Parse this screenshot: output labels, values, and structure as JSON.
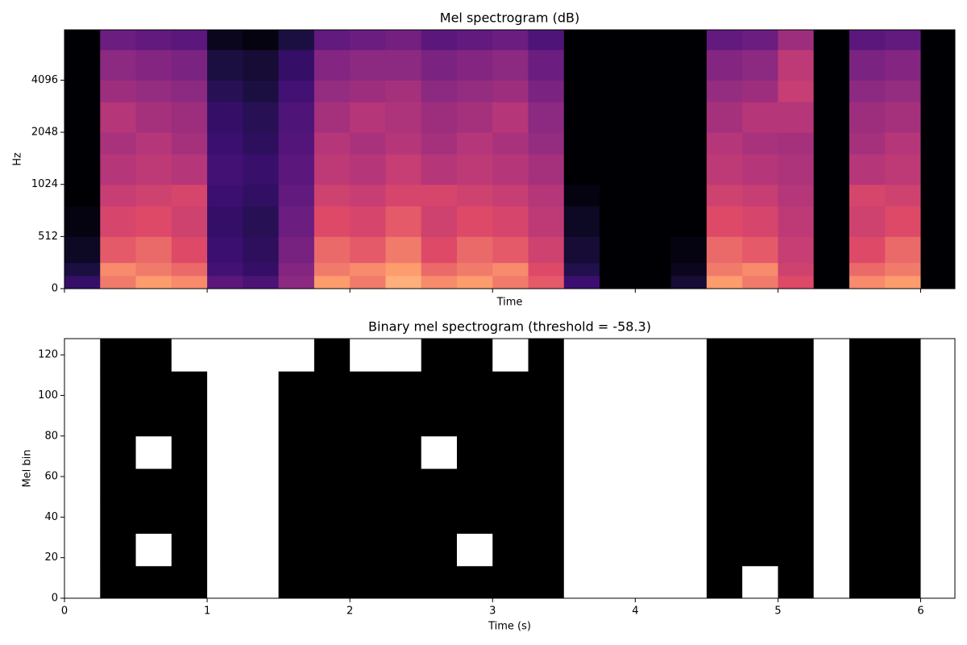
{
  "chart_data": [
    {
      "type": "heatmap",
      "title": "Mel spectrogram (dB)",
      "x_label": "Time",
      "y_label": "Hz",
      "xlim": [
        0,
        6.24
      ],
      "ylim": [
        0,
        8000
      ],
      "yscale": "symlog",
      "linthresh": 512,
      "xticks": [
        0,
        1,
        2,
        3,
        4,
        5,
        6
      ],
      "xticklabels": false,
      "yticks": [
        0,
        512,
        1024,
        2048,
        4096
      ],
      "cmap": "magma",
      "zlim": [
        -80,
        0
      ],
      "x_edges": [
        0,
        0.25,
        0.5,
        0.75,
        1,
        1.25,
        1.5,
        1.75,
        2,
        2.25,
        2.5,
        2.75,
        3,
        3.25,
        3.5,
        3.75,
        4,
        4.25,
        4.5,
        4.75,
        5,
        5.25,
        5.5,
        5.75,
        6,
        6.24
      ],
      "y_edges": [
        0,
        128,
        256,
        512,
        768,
        1024,
        1536,
        2048,
        3072,
        4096,
        6144,
        8000
      ],
      "z": [
        [
          -62,
          -70,
          -75,
          -78,
          -80,
          -80,
          -80,
          -80,
          -80,
          -80,
          -80
        ],
        [
          -14,
          -12,
          -18,
          -22,
          -26,
          -30,
          -33,
          -30,
          -36,
          -40,
          -48
        ],
        [
          -10,
          -14,
          -16,
          -20,
          -24,
          -28,
          -30,
          -34,
          -38,
          -42,
          -50
        ],
        [
          -12,
          -16,
          -20,
          -24,
          -22,
          -30,
          -34,
          -36,
          -40,
          -44,
          -52
        ],
        [
          -52,
          -58,
          -60,
          -62,
          -60,
          -58,
          -60,
          -62,
          -66,
          -70,
          -76
        ],
        [
          -56,
          -62,
          -64,
          -66,
          -63,
          -61,
          -64,
          -66,
          -70,
          -72,
          -78
        ],
        [
          -40,
          -42,
          -45,
          -48,
          -50,
          -52,
          -54,
          -55,
          -58,
          -62,
          -70
        ],
        [
          -10,
          -14,
          -16,
          -20,
          -24,
          -28,
          -30,
          -34,
          -38,
          -42,
          -50
        ],
        [
          -14,
          -12,
          -18,
          -22,
          -26,
          -30,
          -33,
          -30,
          -36,
          -40,
          -48
        ],
        [
          -8,
          -10,
          -14,
          -18,
          -22,
          -26,
          -30,
          -32,
          -34,
          -40,
          -46
        ],
        [
          -12,
          -16,
          -20,
          -24,
          -22,
          -30,
          -34,
          -36,
          -40,
          -44,
          -52
        ],
        [
          -10,
          -14,
          -16,
          -20,
          -24,
          -28,
          -30,
          -34,
          -38,
          -42,
          -50
        ],
        [
          -14,
          -12,
          -18,
          -22,
          -26,
          -30,
          -33,
          -30,
          -36,
          -40,
          -48
        ],
        [
          -18,
          -20,
          -24,
          -28,
          -30,
          -34,
          -38,
          -40,
          -44,
          -48,
          -55
        ],
        [
          -60,
          -68,
          -72,
          -75,
          -78,
          -80,
          -80,
          -80,
          -80,
          -80,
          -80
        ],
        [
          -80,
          -80,
          -80,
          -80,
          -80,
          -80,
          -80,
          -80,
          -80,
          -80,
          -80
        ],
        [
          -80,
          -80,
          -80,
          -80,
          -80,
          -80,
          -80,
          -80,
          -80,
          -80,
          -80
        ],
        [
          -72,
          -76,
          -78,
          -80,
          -80,
          -80,
          -80,
          -80,
          -80,
          -80,
          -80
        ],
        [
          -10,
          -14,
          -16,
          -20,
          -24,
          -28,
          -30,
          -34,
          -38,
          -42,
          -50
        ],
        [
          -14,
          -12,
          -18,
          -22,
          -26,
          -30,
          -33,
          -30,
          -36,
          -40,
          -48
        ],
        [
          -20,
          -24,
          -26,
          -28,
          -30,
          -32,
          -34,
          -30,
          -26,
          -28,
          -36
        ],
        [
          -80,
          -80,
          -80,
          -80,
          -80,
          -80,
          -80,
          -80,
          -80,
          -80,
          -80
        ],
        [
          -12,
          -16,
          -20,
          -24,
          -22,
          -30,
          -34,
          -36,
          -40,
          -44,
          -52
        ],
        [
          -10,
          -14,
          -16,
          -20,
          -24,
          -28,
          -30,
          -34,
          -38,
          -42,
          -50
        ],
        [
          -80,
          -80,
          -80,
          -80,
          -80,
          -80,
          -80,
          -80,
          -80,
          -80,
          -80
        ]
      ]
    },
    {
      "type": "heatmap",
      "title": "Binary mel spectrogram (threshold = -58.3)",
      "x_label": "Time (s)",
      "y_label": "Mel bin",
      "xlim": [
        0,
        6.24
      ],
      "ylim": [
        0,
        128
      ],
      "xticks": [
        0,
        1,
        2,
        3,
        4,
        5,
        6
      ],
      "xticklabels": true,
      "yticks": [
        0,
        20,
        40,
        60,
        80,
        100,
        120
      ],
      "colors": [
        "#ffffff",
        "#000000"
      ],
      "x_edges": [
        0,
        0.25,
        0.5,
        0.75,
        1,
        1.25,
        1.5,
        1.75,
        2,
        2.25,
        2.5,
        2.75,
        3,
        3.25,
        3.5,
        3.75,
        4,
        4.25,
        4.5,
        4.75,
        5,
        5.25,
        5.5,
        5.75,
        6,
        6.24
      ],
      "y_edges": [
        0,
        16,
        32,
        48,
        64,
        80,
        96,
        112,
        128
      ],
      "z": [
        [
          0,
          0,
          0,
          0,
          0,
          0,
          0,
          0
        ],
        [
          1,
          1,
          1,
          1,
          1,
          1,
          1,
          1
        ],
        [
          1,
          0,
          1,
          1,
          0,
          1,
          1,
          1
        ],
        [
          1,
          1,
          1,
          1,
          1,
          1,
          1,
          0
        ],
        [
          0,
          0,
          0,
          0,
          0,
          0,
          0,
          0
        ],
        [
          0,
          0,
          0,
          0,
          0,
          0,
          0,
          0
        ],
        [
          1,
          1,
          1,
          1,
          1,
          1,
          1,
          0
        ],
        [
          1,
          1,
          1,
          1,
          1,
          1,
          1,
          1
        ],
        [
          1,
          1,
          1,
          1,
          1,
          1,
          1,
          0
        ],
        [
          1,
          1,
          1,
          1,
          1,
          1,
          1,
          0
        ],
        [
          1,
          1,
          1,
          1,
          0,
          1,
          1,
          1
        ],
        [
          1,
          0,
          1,
          1,
          1,
          1,
          1,
          1
        ],
        [
          1,
          1,
          1,
          1,
          1,
          1,
          1,
          0
        ],
        [
          1,
          1,
          1,
          1,
          1,
          1,
          1,
          1
        ],
        [
          0,
          0,
          0,
          0,
          0,
          0,
          0,
          0
        ],
        [
          0,
          0,
          0,
          0,
          0,
          0,
          0,
          0
        ],
        [
          0,
          0,
          0,
          0,
          0,
          0,
          0,
          0
        ],
        [
          0,
          0,
          0,
          0,
          0,
          0,
          0,
          0
        ],
        [
          1,
          1,
          1,
          1,
          1,
          1,
          1,
          1
        ],
        [
          0,
          1,
          1,
          1,
          1,
          1,
          1,
          1
        ],
        [
          1,
          1,
          1,
          1,
          1,
          1,
          1,
          1
        ],
        [
          0,
          0,
          0,
          0,
          0,
          0,
          0,
          0
        ],
        [
          1,
          1,
          1,
          1,
          1,
          1,
          1,
          1
        ],
        [
          1,
          1,
          1,
          1,
          1,
          1,
          1,
          1
        ],
        [
          0,
          0,
          0,
          0,
          0,
          0,
          0,
          0
        ]
      ]
    }
  ]
}
